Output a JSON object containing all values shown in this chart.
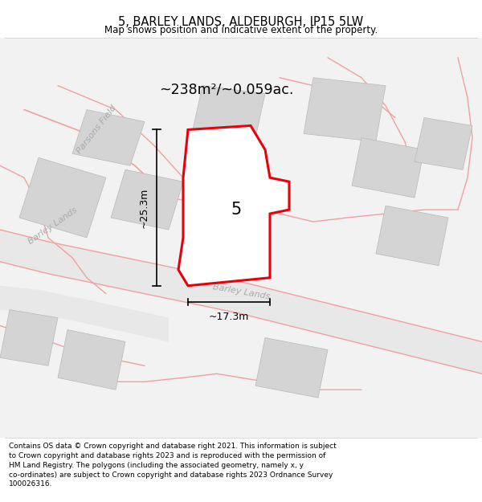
{
  "title": "5, BARLEY LANDS, ALDEBURGH, IP15 5LW",
  "subtitle": "Map shows position and indicative extent of the property.",
  "footnote": "Contains OS data © Crown copyright and database right 2021. This information is subject\nto Crown copyright and database rights 2023 and is reproduced with the permission of\nHM Land Registry. The polygons (including the associated geometry, namely x, y\nco-ordinates) are subject to Crown copyright and database rights 2023 Ordnance Survey\n100026316.",
  "area_label": "~238m²/~0.059ac.",
  "number_label": "5",
  "dim_width": "~17.3m",
  "dim_height": "~25.3m",
  "road_label_road": "Barley Lands",
  "road_label_left": "Barley Lands",
  "parsons_field_label": "Parsons Field",
  "bg_color": "#ffffff",
  "map_bg": "#f2f2f2",
  "plot_fill": "#ffffff",
  "plot_edge": "#e8000a",
  "building_fill": "#d4d4d4",
  "road_fill": "#e6e6e6",
  "pink_line": "#f0a0a0",
  "pink_line2": "#e8b0b0"
}
